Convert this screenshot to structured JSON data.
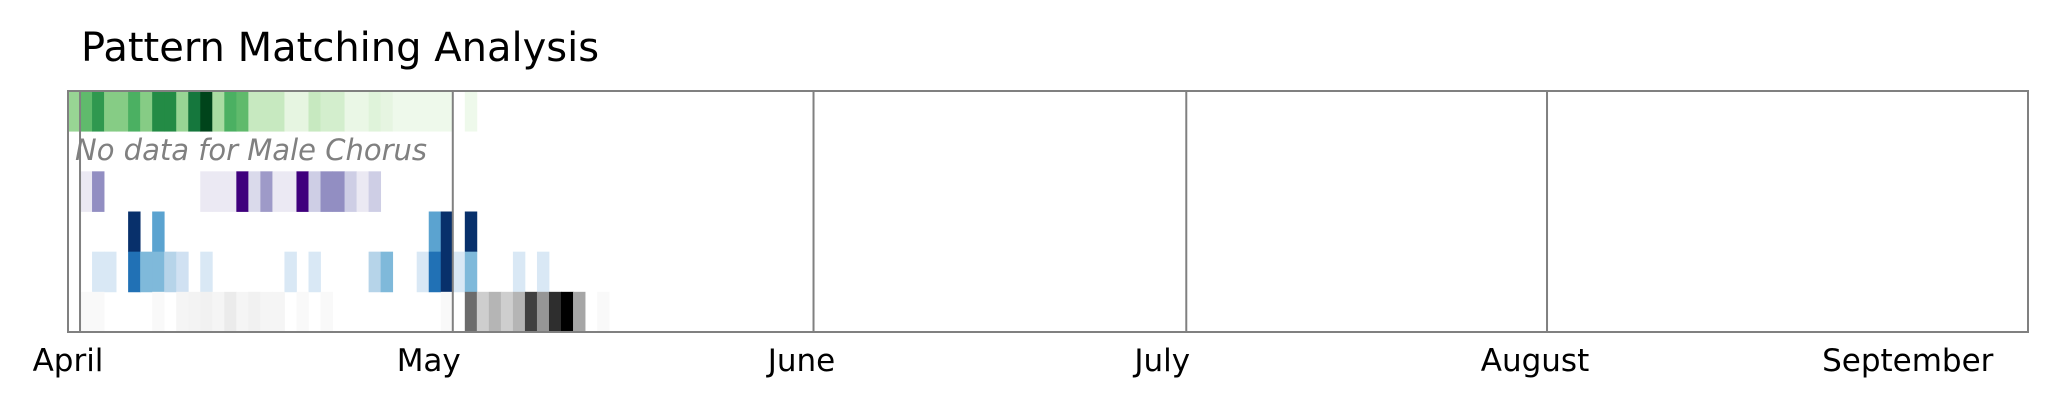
{
  "chart_data": {
    "type": "heatmap",
    "title": "Pattern Matching Analysis",
    "x_unit": "day",
    "x_range": [
      "2024-04-01",
      "2024-09-11"
    ],
    "x_ticks": [
      {
        "label": "April",
        "date": "2024-04-01"
      },
      {
        "label": "May",
        "date": "2024-05-01"
      },
      {
        "label": "June",
        "date": "2024-06-01"
      },
      {
        "label": "July",
        "date": "2024-07-01"
      },
      {
        "label": "August",
        "date": "2024-08-01"
      },
      {
        "label": "September",
        "date": "2024-09-01"
      }
    ],
    "month_boundaries": [
      "2024-04-02",
      "2024-05-03",
      "2024-06-02",
      "2024-07-03",
      "2024-08-02"
    ],
    "grid": false,
    "legend": "none",
    "rows": [
      {
        "colormap": "Greens",
        "colors": [
          "#ffffff",
          "#e5f5e0",
          "#c7e9c0",
          "#a1d99b",
          "#74c476",
          "#41ab5d",
          "#238b45",
          "#005a32",
          "#00441b"
        ],
        "cells": [
          {
            "date": "2024-04-01",
            "v": 0.4
          },
          {
            "date": "2024-04-02",
            "v": 0.55
          },
          {
            "date": "2024-04-03",
            "v": 0.7
          },
          {
            "date": "2024-04-04",
            "v": 0.45
          },
          {
            "date": "2024-04-05",
            "v": 0.45
          },
          {
            "date": "2024-04-06",
            "v": 0.6
          },
          {
            "date": "2024-04-07",
            "v": 0.45
          },
          {
            "date": "2024-04-08",
            "v": 0.75
          },
          {
            "date": "2024-04-09",
            "v": 0.75
          },
          {
            "date": "2024-04-10",
            "v": 0.4
          },
          {
            "date": "2024-04-11",
            "v": 0.8
          },
          {
            "date": "2024-04-12",
            "v": 1.0
          },
          {
            "date": "2024-04-13",
            "v": 0.35
          },
          {
            "date": "2024-04-14",
            "v": 0.6
          },
          {
            "date": "2024-04-15",
            "v": 0.55
          },
          {
            "date": "2024-04-16",
            "v": 0.25
          },
          {
            "date": "2024-04-17",
            "v": 0.25
          },
          {
            "date": "2024-04-18",
            "v": 0.25
          },
          {
            "date": "2024-04-19",
            "v": 0.12
          },
          {
            "date": "2024-04-20",
            "v": 0.12
          },
          {
            "date": "2024-04-21",
            "v": 0.25
          },
          {
            "date": "2024-04-22",
            "v": 0.2
          },
          {
            "date": "2024-04-23",
            "v": 0.2
          },
          {
            "date": "2024-04-24",
            "v": 0.1
          },
          {
            "date": "2024-04-25",
            "v": 0.1
          },
          {
            "date": "2024-04-26",
            "v": 0.15
          },
          {
            "date": "2024-04-27",
            "v": 0.12
          },
          {
            "date": "2024-04-28",
            "v": 0.08
          },
          {
            "date": "2024-04-29",
            "v": 0.08
          },
          {
            "date": "2024-04-30",
            "v": 0.08
          },
          {
            "date": "2024-05-01",
            "v": 0.08
          },
          {
            "date": "2024-05-02",
            "v": 0.08
          },
          {
            "date": "2024-05-04",
            "v": 0.08
          }
        ]
      },
      {
        "colormap": "none",
        "note": "No data for Male Chorus",
        "cells": []
      },
      {
        "colormap": "Purples",
        "colors": [
          "#ffffff",
          "#efedf5",
          "#dadaeb",
          "#bcbddc",
          "#9e9ac8",
          "#807dba",
          "#6a51a3",
          "#54278f",
          "#3f007d"
        ],
        "cells": [
          {
            "date": "2024-04-02",
            "v": 0.15
          },
          {
            "date": "2024-04-03",
            "v": 0.55
          },
          {
            "date": "2024-04-12",
            "v": 0.15
          },
          {
            "date": "2024-04-13",
            "v": 0.15
          },
          {
            "date": "2024-04-14",
            "v": 0.15
          },
          {
            "date": "2024-04-15",
            "v": 1.0
          },
          {
            "date": "2024-04-16",
            "v": 0.25
          },
          {
            "date": "2024-04-17",
            "v": 0.5
          },
          {
            "date": "2024-04-18",
            "v": 0.15
          },
          {
            "date": "2024-04-19",
            "v": 0.15
          },
          {
            "date": "2024-04-20",
            "v": 1.0
          },
          {
            "date": "2024-04-21",
            "v": 0.3
          },
          {
            "date": "2024-04-22",
            "v": 0.55
          },
          {
            "date": "2024-04-23",
            "v": 0.55
          },
          {
            "date": "2024-04-24",
            "v": 0.3
          },
          {
            "date": "2024-04-25",
            "v": 0.15
          },
          {
            "date": "2024-04-26",
            "v": 0.3
          }
        ]
      },
      {
        "colormap": "Blues",
        "colors": [
          "#ffffff",
          "#deebf7",
          "#c6dbef",
          "#9ecae1",
          "#6baed6",
          "#4292c6",
          "#2171b5",
          "#08519c",
          "#08306b"
        ],
        "cells": [
          {
            "date": "2024-04-06",
            "v": 1.0
          },
          {
            "date": "2024-04-08",
            "v": 0.55
          },
          {
            "date": "2024-05-01",
            "v": 0.55
          },
          {
            "date": "2024-05-02",
            "v": 1.0
          },
          {
            "date": "2024-05-04",
            "v": 1.0
          }
        ]
      },
      {
        "colormap": "Blues",
        "colors": [
          "#ffffff",
          "#deebf7",
          "#c6dbef",
          "#9ecae1",
          "#6baed6",
          "#4292c6",
          "#2171b5",
          "#08519c",
          "#08306b"
        ],
        "cells": [
          {
            "date": "2024-04-03",
            "v": 0.15
          },
          {
            "date": "2024-04-04",
            "v": 0.15
          },
          {
            "date": "2024-04-06",
            "v": 0.75
          },
          {
            "date": "2024-04-07",
            "v": 0.45
          },
          {
            "date": "2024-04-08",
            "v": 0.45
          },
          {
            "date": "2024-04-09",
            "v": 0.3
          },
          {
            "date": "2024-04-10",
            "v": 0.2
          },
          {
            "date": "2024-04-12",
            "v": 0.15
          },
          {
            "date": "2024-04-19",
            "v": 0.15
          },
          {
            "date": "2024-04-21",
            "v": 0.15
          },
          {
            "date": "2024-04-26",
            "v": 0.3
          },
          {
            "date": "2024-04-27",
            "v": 0.45
          },
          {
            "date": "2024-04-30",
            "v": 0.15
          },
          {
            "date": "2024-05-01",
            "v": 0.75
          },
          {
            "date": "2024-05-02",
            "v": 1.0
          },
          {
            "date": "2024-05-03",
            "v": 0.15
          },
          {
            "date": "2024-05-04",
            "v": 0.45
          },
          {
            "date": "2024-05-08",
            "v": 0.15
          },
          {
            "date": "2024-05-10",
            "v": 0.15
          }
        ]
      },
      {
        "colormap": "Greys",
        "colors": [
          "#ffffff",
          "#f0f0f0",
          "#d9d9d9",
          "#bdbdbd",
          "#969696",
          "#737373",
          "#525252",
          "#252525",
          "#000000"
        ],
        "cells": [
          {
            "date": "2024-04-02",
            "v": 0.05
          },
          {
            "date": "2024-04-03",
            "v": 0.05
          },
          {
            "date": "2024-04-08",
            "v": 0.05
          },
          {
            "date": "2024-04-10",
            "v": 0.08
          },
          {
            "date": "2024-04-11",
            "v": 0.1
          },
          {
            "date": "2024-04-12",
            "v": 0.12
          },
          {
            "date": "2024-04-13",
            "v": 0.08
          },
          {
            "date": "2024-04-14",
            "v": 0.15
          },
          {
            "date": "2024-04-15",
            "v": 0.08
          },
          {
            "date": "2024-04-16",
            "v": 0.12
          },
          {
            "date": "2024-04-17",
            "v": 0.08
          },
          {
            "date": "2024-04-18",
            "v": 0.08
          },
          {
            "date": "2024-04-20",
            "v": 0.05
          },
          {
            "date": "2024-04-22",
            "v": 0.05
          },
          {
            "date": "2024-05-02",
            "v": 0.05
          },
          {
            "date": "2024-05-04",
            "v": 0.65
          },
          {
            "date": "2024-05-05",
            "v": 0.3
          },
          {
            "date": "2024-05-06",
            "v": 0.4
          },
          {
            "date": "2024-05-07",
            "v": 0.3
          },
          {
            "date": "2024-05-08",
            "v": 0.4
          },
          {
            "date": "2024-05-09",
            "v": 0.8
          },
          {
            "date": "2024-05-10",
            "v": 0.5
          },
          {
            "date": "2024-05-11",
            "v": 0.85
          },
          {
            "date": "2024-05-12",
            "v": 1.0
          },
          {
            "date": "2024-05-13",
            "v": 0.45
          },
          {
            "date": "2024-05-15",
            "v": 0.05
          }
        ]
      }
    ]
  }
}
